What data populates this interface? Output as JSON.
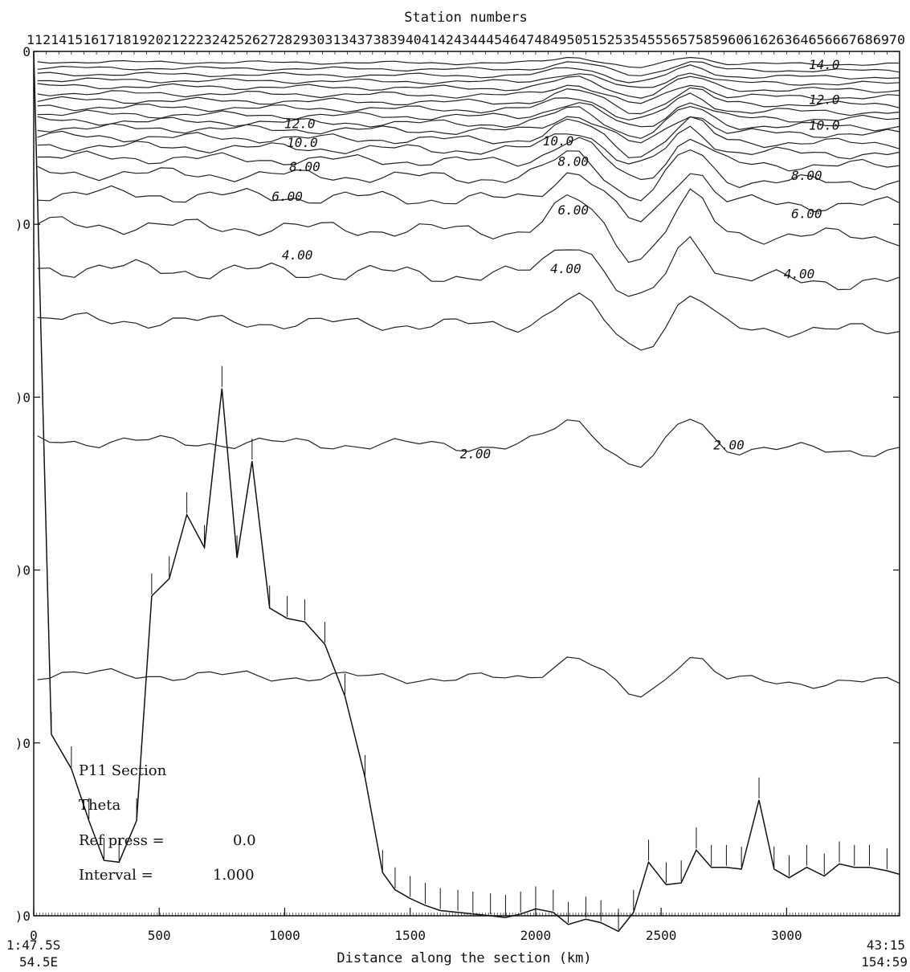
{
  "chart_data": {
    "type": "contour",
    "top_axis_label": "Station numbers",
    "top_axis_ticks": "1121415161718192021222324252627282930313437383940414243444546474849505152535455565758596061626364656667686970",
    "xlabel": "Distance along the section (km)",
    "xlim": [
      0,
      3450
    ],
    "x_ticks": [
      0,
      500,
      1000,
      1500,
      2000,
      2500,
      3000
    ],
    "y_tick_labels": [
      "0",
      ")0",
      ")0",
      ")0",
      ")0",
      ")0"
    ],
    "y_ticks": [
      0,
      1000,
      2000,
      3000,
      4000,
      5000
    ],
    "ylim": [
      0,
      5000
    ],
    "start_position": {
      "lat": "1:47.5S",
      "lon": "54.5E"
    },
    "end_position": {
      "lat": "43:15",
      "lon": "154:59"
    },
    "info": {
      "section": "P11 Section",
      "variable": "Theta",
      "ref_press_label": "Ref press  =",
      "ref_press_value": "0.0",
      "interval_label": "Interval =",
      "interval_value": "1.000"
    },
    "contour_labels": [
      {
        "text": "14.0",
        "x": 3150,
        "y": 80
      },
      {
        "text": "12.0",
        "x": 3150,
        "y": 280
      },
      {
        "text": "10.0",
        "x": 3150,
        "y": 430
      },
      {
        "text": "10.0",
        "x": 1070,
        "y": 530
      },
      {
        "text": "12.0",
        "x": 1060,
        "y": 420
      },
      {
        "text": "8.00",
        "x": 1080,
        "y": 670
      },
      {
        "text": "6.00",
        "x": 1010,
        "y": 840
      },
      {
        "text": "8.00",
        "x": 3080,
        "y": 720
      },
      {
        "text": "6.00",
        "x": 3080,
        "y": 940
      },
      {
        "text": "4.00",
        "x": 1050,
        "y": 1180
      },
      {
        "text": "4.00",
        "x": 2120,
        "y": 1260
      },
      {
        "text": "4.00",
        "x": 3050,
        "y": 1290
      },
      {
        "text": "2.00",
        "x": 1760,
        "y": 2330
      },
      {
        "text": "2.00",
        "x": 2770,
        "y": 2280
      },
      {
        "text": "8.00",
        "x": 2150,
        "y": 640
      },
      {
        "text": "6.00",
        "x": 2150,
        "y": 920
      },
      {
        "text": "10.0",
        "x": 2090,
        "y": 520
      }
    ],
    "bottom_depth": {
      "x": [
        0,
        70,
        150,
        220,
        280,
        340,
        410,
        470,
        540,
        610,
        680,
        750,
        810,
        870,
        940,
        1010,
        1080,
        1160,
        1240,
        1320,
        1390,
        1440,
        1500,
        1560,
        1620,
        1690,
        1750,
        1820,
        1880,
        1940,
        2000,
        2070,
        2130,
        2200,
        2260,
        2330,
        2390,
        2450,
        2520,
        2580,
        2640,
        2700,
        2760,
        2820,
        2890,
        2950,
        3010,
        3080,
        3150,
        3210,
        3270,
        3330,
        3400,
        3450
      ],
      "y": [
        0,
        3950,
        4150,
        4450,
        4680,
        4690,
        4450,
        3150,
        3050,
        2680,
        2870,
        1950,
        2930,
        2370,
        3220,
        3280,
        3300,
        3430,
        3730,
        4200,
        4750,
        4850,
        4900,
        4940,
        4970,
        4980,
        4990,
        5000,
        5010,
        4990,
        4960,
        4980,
        5050,
        5020,
        5040,
        5090,
        4980,
        4690,
        4820,
        4810,
        4620,
        4720,
        4720,
        4730,
        4330,
        4730,
        4780,
        4720,
        4770,
        4700,
        4720,
        4720,
        4740,
        4760
      ]
    }
  }
}
